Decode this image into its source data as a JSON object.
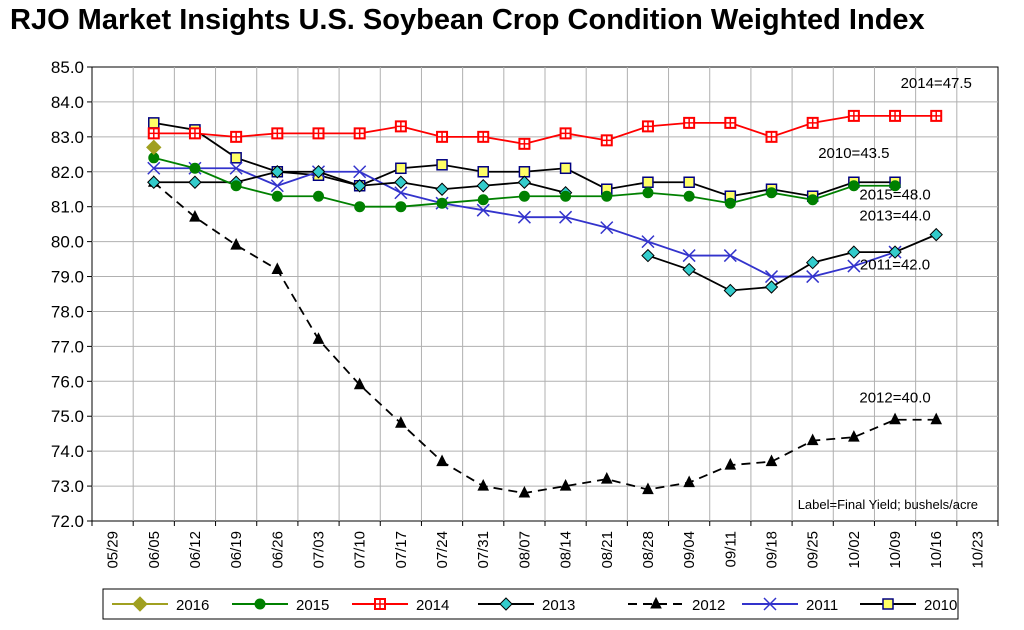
{
  "title": "RJO Market Insights U.S. Soybean Crop Condition Weighted Index",
  "chart_data": {
    "type": "line",
    "title": "RJO Market Insights U.S. Soybean Crop Condition Weighted Index",
    "xlabel": "",
    "ylabel": "",
    "categories": [
      "05/29",
      "06/05",
      "06/12",
      "06/19",
      "06/26",
      "07/03",
      "07/10",
      "07/17",
      "07/24",
      "07/31",
      "08/07",
      "08/14",
      "08/21",
      "08/28",
      "09/04",
      "09/11",
      "09/18",
      "09/25",
      "10/02",
      "10/09",
      "10/16",
      "10/23"
    ],
    "ylim": [
      72.0,
      85.0
    ],
    "yticks": [
      "72.0",
      "73.0",
      "74.0",
      "75.0",
      "76.0",
      "77.0",
      "78.0",
      "79.0",
      "80.0",
      "81.0",
      "82.0",
      "83.0",
      "84.0",
      "85.0"
    ],
    "grid": true,
    "legend_position": "bottom",
    "note": "Label=Final Yield; bushels/acre",
    "series": [
      {
        "name": "2016",
        "color": "#a0a020",
        "marker": "diamond",
        "dash": "solid",
        "values": [
          null,
          82.7,
          null,
          null,
          null,
          null,
          null,
          null,
          null,
          null,
          null,
          null,
          null,
          null,
          null,
          null,
          null,
          null,
          null,
          null,
          null,
          null
        ]
      },
      {
        "name": "2015",
        "color": "#008000",
        "marker": "circle",
        "dash": "solid",
        "values": [
          null,
          82.4,
          82.1,
          81.6,
          81.3,
          81.3,
          81.0,
          81.0,
          81.1,
          81.2,
          81.3,
          81.3,
          81.3,
          81.4,
          81.3,
          81.1,
          81.4,
          81.2,
          81.6,
          81.6,
          null,
          null
        ]
      },
      {
        "name": "2014",
        "color": "#ff0000",
        "marker": "square-cross",
        "dash": "solid",
        "values": [
          null,
          83.1,
          83.1,
          83.0,
          83.1,
          83.1,
          83.1,
          83.3,
          83.0,
          83.0,
          82.8,
          83.1,
          82.9,
          83.3,
          83.4,
          83.4,
          83.0,
          83.4,
          83.6,
          83.6,
          83.6,
          null
        ]
      },
      {
        "name": "2013",
        "color": "#000000",
        "marker": "diamond-cyan",
        "dash": "solid",
        "values": [
          null,
          81.7,
          81.7,
          81.7,
          82.0,
          82.0,
          81.6,
          81.7,
          81.5,
          81.6,
          81.7,
          81.4,
          null,
          79.6,
          79.2,
          78.6,
          78.7,
          79.4,
          79.7,
          79.7,
          80.2,
          null
        ]
      },
      {
        "name": "2012",
        "color": "#000000",
        "marker": "triangle",
        "dash": "dashed",
        "values": [
          null,
          81.7,
          80.7,
          79.9,
          79.2,
          77.2,
          75.9,
          74.8,
          73.7,
          73.0,
          72.8,
          73.0,
          73.2,
          72.9,
          73.1,
          73.6,
          73.7,
          74.3,
          74.4,
          74.9,
          74.9,
          null
        ]
      },
      {
        "name": "2011",
        "color": "#3333cc",
        "marker": "x",
        "dash": "solid",
        "values": [
          null,
          82.1,
          82.1,
          82.1,
          81.6,
          82.0,
          82.0,
          81.4,
          81.1,
          80.9,
          80.7,
          80.7,
          80.4,
          80.0,
          79.6,
          79.6,
          79.0,
          79.0,
          79.3,
          79.7,
          null,
          null
        ]
      },
      {
        "name": "2010",
        "color": "#000000",
        "marker": "square-yellow",
        "dash": "solid",
        "values": [
          null,
          83.4,
          83.2,
          82.4,
          82.0,
          81.9,
          81.6,
          82.1,
          82.2,
          82.0,
          82.0,
          82.1,
          81.5,
          81.7,
          81.7,
          81.3,
          81.5,
          81.3,
          81.7,
          81.7,
          null,
          null
        ]
      }
    ],
    "annotations": [
      {
        "text": "2014=47.5",
        "x": "10/16",
        "y": 84.4
      },
      {
        "text": "2010=43.5",
        "x": "10/02",
        "y": 82.4
      },
      {
        "text": "2015=48.0",
        "x": "10/09",
        "y": 81.2
      },
      {
        "text": "2013=44.0",
        "x": "10/09",
        "y": 80.6
      },
      {
        "text": "2011=42.0",
        "x": "10/09",
        "y": 79.2
      },
      {
        "text": "2012=40.0",
        "x": "10/09",
        "y": 75.4
      }
    ]
  }
}
